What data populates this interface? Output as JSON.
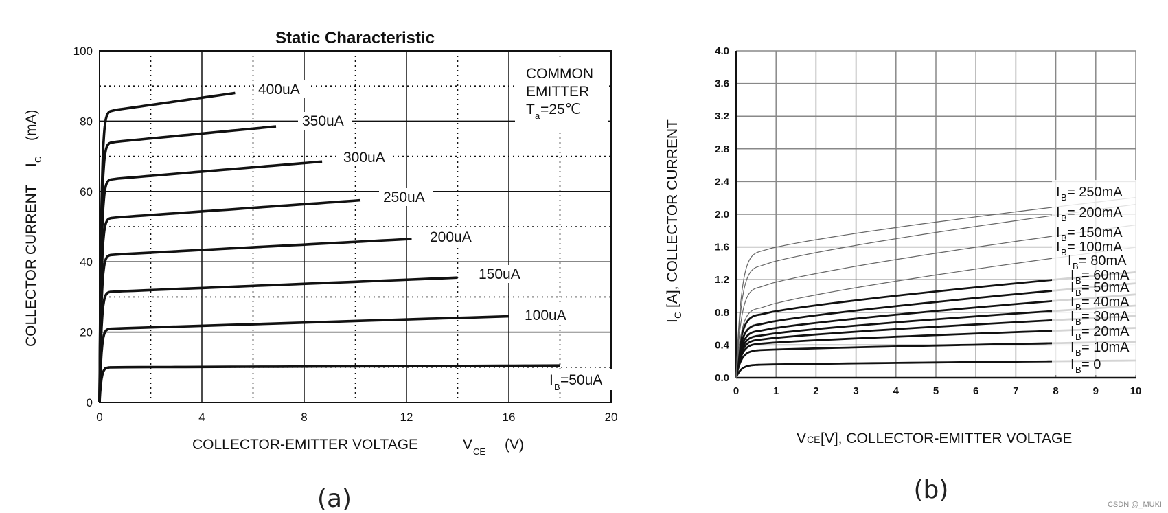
{
  "captions": [
    "(a)",
    "(b)"
  ],
  "watermark": "CSDN @_MUKI",
  "chart_data": [
    {
      "type": "line",
      "title": "Static Characteristic",
      "xlabel": "COLLECTOR-EMITTER VOLTAGE",
      "xlabel_symbol": "V",
      "xlabel_sub": "CE",
      "xlabel_unit": "(V)",
      "ylabel": "COLLECTOR CURRENT",
      "ylabel_symbol": "I",
      "ylabel_sub": "C",
      "ylabel_unit": "(mA)",
      "xlim": [
        0,
        20
      ],
      "ylim": [
        0,
        100
      ],
      "xticks": [
        0,
        4,
        8,
        12,
        16,
        20
      ],
      "yticks": [
        0,
        20,
        40,
        60,
        80,
        100
      ],
      "grid": "solid major lines with dotted minor lines",
      "annotation": {
        "lines": [
          "COMMON",
          "EMITTER"
        ],
        "temp_symbol": "T",
        "temp_sub": "a",
        "temp_value": "=25℃",
        "placement": "top-right"
      },
      "series": [
        {
          "name": "I_B=50uA",
          "label_prefix": "I",
          "label_sub": "B",
          "label_main": "=50uA",
          "x_end": 18,
          "knee": 10,
          "i_end": 10.5
        },
        {
          "name": "100uA",
          "label_main": "100uA",
          "x_end": 16,
          "knee": 21,
          "i_end": 24.5
        },
        {
          "name": "150uA",
          "label_main": "150uA",
          "x_end": 14,
          "knee": 31.5,
          "i_end": 35.5
        },
        {
          "name": "200uA",
          "label_main": "200uA",
          "x_end": 12.2,
          "knee": 42,
          "i_end": 46.5
        },
        {
          "name": "250uA",
          "label_main": "250uA",
          "x_end": 10.2,
          "knee": 52.5,
          "i_end": 57.5
        },
        {
          "name": "300uA",
          "label_main": "300uA",
          "x_end": 8.7,
          "knee": 63.5,
          "i_end": 68.5
        },
        {
          "name": "350uA",
          "label_main": "350uA",
          "x_end": 6.9,
          "knee": 74,
          "i_end": 78.5
        },
        {
          "name": "400uA",
          "label_main": "400uA",
          "x_end": 5.3,
          "knee": 83,
          "i_end": 88
        }
      ]
    },
    {
      "type": "line",
      "title": "",
      "xlabel": "[V], COLLECTOR-EMITTER VOLTAGE",
      "xlabel_symbol": "V",
      "xlabel_sub": "CE",
      "ylabel": "[A], COLLECTOR CURRENT",
      "ylabel_symbol": "I",
      "ylabel_sub": "C",
      "xlim": [
        0,
        10
      ],
      "ylim": [
        0,
        4.0
      ],
      "xticks": [
        "0",
        "1",
        "2",
        "3",
        "4",
        "5",
        "6",
        "7",
        "8",
        "9",
        "10"
      ],
      "yticks": [
        "0.0",
        "0.4",
        "0.8",
        "1.2",
        "1.6",
        "2.0",
        "2.4",
        "2.8",
        "3.2",
        "3.6",
        "4.0"
      ],
      "grid": true,
      "series": [
        {
          "name": "I_B = 0",
          "label_main": " = 0",
          "knee": 0.16,
          "i_end": 0.2,
          "weight": "bold"
        },
        {
          "name": "I_B = 10mA",
          "label_main": " = 10mA",
          "knee": 0.34,
          "i_end": 0.42,
          "weight": "bold"
        },
        {
          "name": "I_B = 20mA",
          "label_main": " = 20mA",
          "knee": 0.42,
          "i_end": 0.58,
          "weight": "bold"
        },
        {
          "name": "I_B = 30mA",
          "label_main": " = 30mA",
          "knee": 0.47,
          "i_end": 0.72,
          "weight": "bold"
        },
        {
          "name": "I_B = 40mA",
          "label_main": " = 40mA",
          "knee": 0.52,
          "i_end": 0.84,
          "weight": "bold"
        },
        {
          "name": "I_B = 50mA",
          "label_main": " = 50mA",
          "knee": 0.58,
          "i_end": 0.97,
          "weight": "bold"
        },
        {
          "name": "I_B = 60mA",
          "label_main": " = 60mA",
          "knee": 0.66,
          "i_end": 1.1,
          "weight": "bold"
        },
        {
          "name": "I_B = 80mA",
          "label_main": " = 80mA",
          "knee": 0.78,
          "i_end": 1.23,
          "weight": "bold"
        },
        {
          "name": "I_B = 100mA",
          "label_main": " = 100mA",
          "knee": 0.86,
          "i_end": 1.52,
          "weight": "thin"
        },
        {
          "name": "I_B = 150mA",
          "label_main": " = 150mA",
          "knee": 1.12,
          "i_end": 1.78,
          "weight": "thin"
        },
        {
          "name": "I_B = 200mA",
          "label_main": " = 200mA",
          "knee": 1.38,
          "i_end": 2.02,
          "weight": "thin"
        },
        {
          "name": "I_B = 250mA",
          "label_main": " = 250mA",
          "knee": 1.56,
          "i_end": 2.1,
          "weight": "thin"
        }
      ],
      "label_prefix": "I",
      "label_sub": "B"
    }
  ]
}
